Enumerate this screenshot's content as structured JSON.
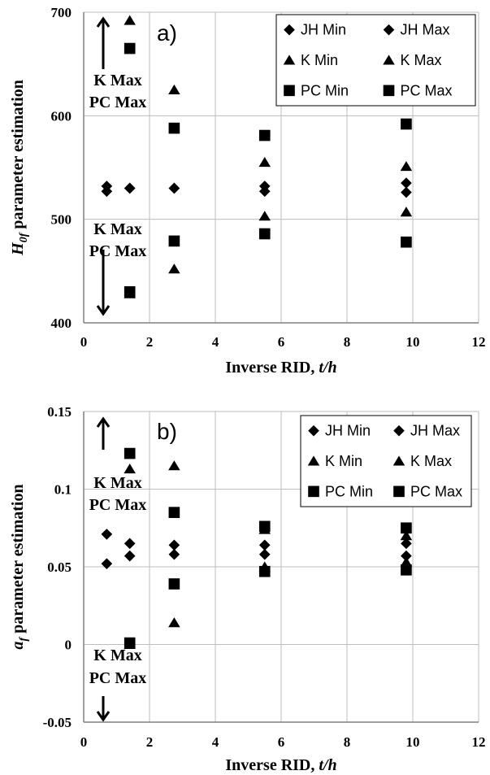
{
  "chart_data": [
    {
      "type": "scatter",
      "panel_label": "a)",
      "ylabel_main": "H",
      "ylabel_sub": "0f",
      "ylabel_rest": " parameter estimation",
      "xlabel_main": "Inverse RID, ",
      "xlabel_italic": "t/h",
      "xlim": [
        0,
        12
      ],
      "ylim": [
        400,
        700
      ],
      "xticks": [
        "0",
        "2",
        "4",
        "6",
        "8",
        "10",
        "12"
      ],
      "yticks": [
        "400",
        "500",
        "600",
        "700"
      ],
      "grid": true,
      "legend_placement": "top-right",
      "legend": [
        {
          "label": "JH Min",
          "marker": "diamond"
        },
        {
          "label": "JH Max",
          "marker": "diamond"
        },
        {
          "label": "K Min",
          "marker": "triangle"
        },
        {
          "label": "K Max",
          "marker": "triangle"
        },
        {
          "label": "PC Min",
          "marker": "square"
        },
        {
          "label": "PC Max",
          "marker": "square"
        }
      ],
      "annotations": [
        {
          "line1": "K Max",
          "line2": "PC Max",
          "arrow": "up"
        },
        {
          "line1": "K Max",
          "line2": "PC Max",
          "arrow": "down"
        }
      ],
      "series": [
        {
          "name": "JH Min",
          "marker": "diamond",
          "points": [
            [
              0.7,
              527
            ],
            [
              1.4,
              530
            ],
            [
              2.75,
              530
            ],
            [
              5.5,
              527
            ],
            [
              9.8,
              526
            ]
          ]
        },
        {
          "name": "JH Max",
          "marker": "diamond",
          "points": [
            [
              0.7,
              532
            ],
            [
              1.4,
              530
            ],
            [
              2.75,
              530
            ],
            [
              5.5,
              532
            ],
            [
              9.8,
              535
            ]
          ]
        },
        {
          "name": "K Min",
          "marker": "triangle",
          "points": [
            [
              1.4,
              428
            ],
            [
              2.75,
              452
            ],
            [
              5.5,
              503
            ],
            [
              9.8,
              507
            ]
          ]
        },
        {
          "name": "K Max",
          "marker": "triangle",
          "points": [
            [
              1.4,
              692
            ],
            [
              2.75,
              625
            ],
            [
              5.5,
              555
            ],
            [
              9.8,
              551
            ]
          ]
        },
        {
          "name": "PC Min",
          "marker": "square",
          "points": [
            [
              1.4,
              430
            ],
            [
              2.75,
              479
            ],
            [
              5.5,
              486
            ],
            [
              9.8,
              478
            ]
          ]
        },
        {
          "name": "PC Max",
          "marker": "square",
          "points": [
            [
              1.4,
              665
            ],
            [
              2.75,
              588
            ],
            [
              5.5,
              581
            ],
            [
              9.8,
              592
            ]
          ]
        }
      ]
    },
    {
      "type": "scatter",
      "panel_label": "b)",
      "ylabel_main": "a",
      "ylabel_sub": "f",
      "ylabel_rest": " parameter estimation",
      "xlabel_main": "Inverse RID, ",
      "xlabel_italic": "t/h",
      "xlim": [
        0,
        12
      ],
      "ylim": [
        -0.05,
        0.15
      ],
      "xticks": [
        "0",
        "2",
        "4",
        "6",
        "8",
        "10",
        "12"
      ],
      "yticks": [
        "-0.05",
        "0",
        "0.05",
        "0.1",
        "0.15"
      ],
      "grid": true,
      "legend_placement": "top-right",
      "legend": [
        {
          "label": "JH Min",
          "marker": "diamond"
        },
        {
          "label": "JH Max",
          "marker": "diamond"
        },
        {
          "label": "K Min",
          "marker": "triangle"
        },
        {
          "label": "K Max",
          "marker": "triangle"
        },
        {
          "label": "PC Min",
          "marker": "square"
        },
        {
          "label": "PC Max",
          "marker": "square"
        }
      ],
      "annotations": [
        {
          "line1": "K Max",
          "line2": "PC Max",
          "arrow": "up"
        },
        {
          "line1": "K Max",
          "line2": "PC Max",
          "arrow": "down"
        }
      ],
      "series": [
        {
          "name": "JH Min",
          "marker": "diamond",
          "points": [
            [
              0.7,
              0.052
            ],
            [
              1.4,
              0.057
            ],
            [
              2.75,
              0.058
            ],
            [
              5.5,
              0.058
            ],
            [
              9.8,
              0.057
            ]
          ]
        },
        {
          "name": "JH Max",
          "marker": "diamond",
          "points": [
            [
              0.7,
              0.071
            ],
            [
              1.4,
              0.065
            ],
            [
              2.75,
              0.064
            ],
            [
              5.5,
              0.064
            ],
            [
              9.8,
              0.065
            ]
          ]
        },
        {
          "name": "K Min",
          "marker": "triangle",
          "points": [
            [
              1.4,
              0.0
            ],
            [
              2.75,
              0.014
            ],
            [
              5.5,
              0.05
            ],
            [
              9.8,
              0.053
            ]
          ]
        },
        {
          "name": "K Max",
          "marker": "triangle",
          "points": [
            [
              1.4,
              0.113
            ],
            [
              2.75,
              0.115
            ],
            [
              5.5,
              0.074
            ],
            [
              9.8,
              0.07
            ]
          ]
        },
        {
          "name": "PC Min",
          "marker": "square",
          "points": [
            [
              1.4,
              0.001
            ],
            [
              2.75,
              0.039
            ],
            [
              5.5,
              0.047
            ],
            [
              9.8,
              0.048
            ]
          ]
        },
        {
          "name": "PC Max",
          "marker": "square",
          "points": [
            [
              1.4,
              0.123
            ],
            [
              2.75,
              0.085
            ],
            [
              5.5,
              0.076
            ],
            [
              9.8,
              0.075
            ]
          ]
        }
      ]
    }
  ]
}
